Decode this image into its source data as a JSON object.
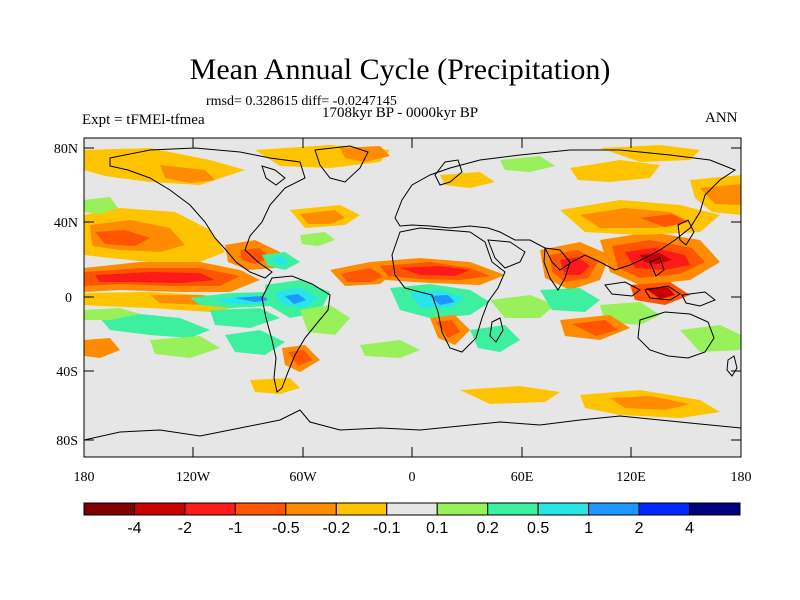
{
  "title": "Mean Annual Cycle (Precipitation)",
  "stats": "rmsd= 0.328615  diff= -0.0247145",
  "period": "1708kyr BP - 0000kyr BP",
  "experiment": "Expt = tFMEl-tfmea",
  "season": "ANN",
  "lat_ticks": [
    "80N",
    "40N",
    "0",
    "40S",
    "80S"
  ],
  "lon_ticks": [
    "180",
    "120W",
    "60W",
    "0",
    "60E",
    "120E",
    "180"
  ],
  "colorbar": {
    "labels": [
      "-4",
      "-2",
      "-1",
      "-0.5",
      "-0.2",
      "-0.1",
      "0.1",
      "0.2",
      "0.5",
      "1",
      "2",
      "4"
    ],
    "colors": [
      "#7f0000",
      "#c80000",
      "#ff1a1a",
      "#ff5500",
      "#ff8c00",
      "#ffc400",
      "#e6e6e6",
      "#98f05a",
      "#3cf0a0",
      "#28e6e6",
      "#1e96ff",
      "#0028ff",
      "#00007f"
    ]
  }
}
